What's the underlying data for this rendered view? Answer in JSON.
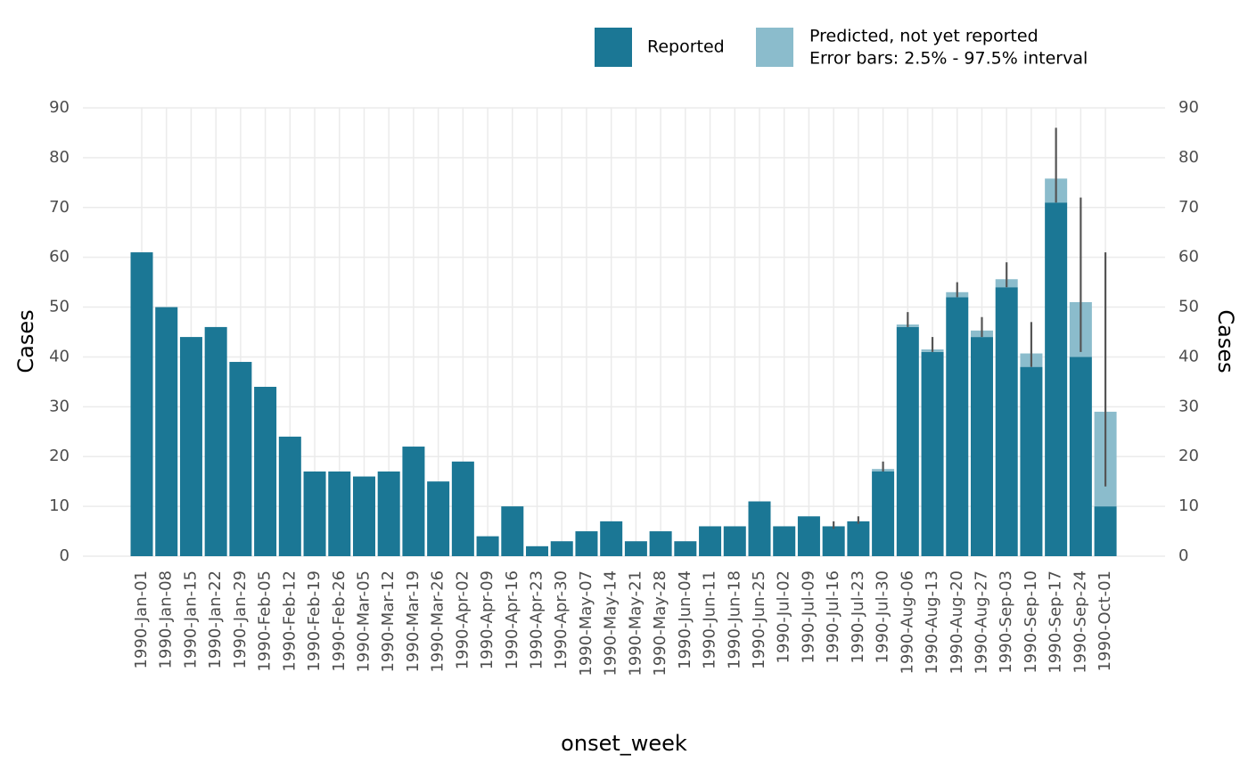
{
  "chart_data": {
    "type": "stacked_bar",
    "x_label": "onset_week",
    "y_label": "Cases",
    "y2_label": "Cases",
    "categories": [
      "1990-Jan-01",
      "1990-Jan-08",
      "1990-Jan-15",
      "1990-Jan-22",
      "1990-Jan-29",
      "1990-Feb-05",
      "1990-Feb-12",
      "1990-Feb-19",
      "1990-Feb-26",
      "1990-Mar-05",
      "1990-Mar-12",
      "1990-Mar-19",
      "1990-Mar-26",
      "1990-Apr-02",
      "1990-Apr-09",
      "1990-Apr-16",
      "1990-Apr-23",
      "1990-Apr-30",
      "1990-May-07",
      "1990-May-14",
      "1990-May-21",
      "1990-May-28",
      "1990-Jun-04",
      "1990-Jun-11",
      "1990-Jun-18",
      "1990-Jun-25",
      "1990-Jul-02",
      "1990-Jul-09",
      "1990-Jul-16",
      "1990-Jul-23",
      "1990-Jul-30",
      "1990-Aug-06",
      "1990-Aug-13",
      "1990-Aug-20",
      "1990-Aug-27",
      "1990-Sep-03",
      "1990-Sep-10",
      "1990-Sep-17",
      "1990-Sep-24",
      "1990-Oct-01"
    ],
    "series": [
      {
        "name": "Reported",
        "color": "#1b7795",
        "values": [
          61,
          50,
          44,
          46,
          39,
          34,
          24,
          17,
          17,
          16,
          17,
          22,
          15,
          19,
          4,
          10,
          2,
          3,
          5,
          7,
          3,
          5,
          3,
          6,
          6,
          11,
          6,
          8,
          6,
          7,
          17,
          46,
          41,
          52,
          44,
          54,
          38,
          71,
          40,
          10
        ]
      },
      {
        "name": "Predicted, not yet reported",
        "color": "#8bbccc",
        "values": [
          null,
          null,
          null,
          null,
          null,
          null,
          null,
          null,
          null,
          null,
          null,
          null,
          null,
          null,
          null,
          null,
          null,
          null,
          null,
          null,
          null,
          null,
          null,
          null,
          null,
          null,
          null,
          null,
          null,
          null,
          0.5,
          0.5,
          0.5,
          1,
          1.3,
          1.6,
          2.7,
          4.8,
          11,
          19
        ]
      }
    ],
    "error_bar_label": "Error bars: 2.5% - 97.5% interval",
    "error_low": [
      null,
      null,
      null,
      null,
      null,
      null,
      null,
      null,
      null,
      null,
      null,
      null,
      null,
      null,
      null,
      null,
      null,
      null,
      null,
      null,
      null,
      null,
      null,
      null,
      null,
      null,
      null,
      null,
      5.5,
      6.5,
      17,
      46,
      41,
      52,
      44,
      54,
      38,
      71,
      41,
      14
    ],
    "error_high": [
      null,
      null,
      null,
      null,
      null,
      null,
      null,
      null,
      null,
      null,
      null,
      null,
      null,
      null,
      null,
      null,
      null,
      null,
      null,
      null,
      null,
      null,
      null,
      null,
      null,
      null,
      null,
      null,
      7,
      8,
      19,
      49,
      44,
      55,
      48,
      59,
      47,
      86,
      72,
      61
    ],
    "error_color": "#555555",
    "ylim": [
      0,
      90
    ],
    "yticks": [
      0,
      10,
      20,
      30,
      40,
      50,
      60,
      70,
      80,
      90
    ],
    "y2lim": [
      0,
      90
    ],
    "y2ticks": [
      0,
      10,
      20,
      30,
      40,
      50,
      60,
      70,
      80,
      90
    ],
    "grid": true
  }
}
